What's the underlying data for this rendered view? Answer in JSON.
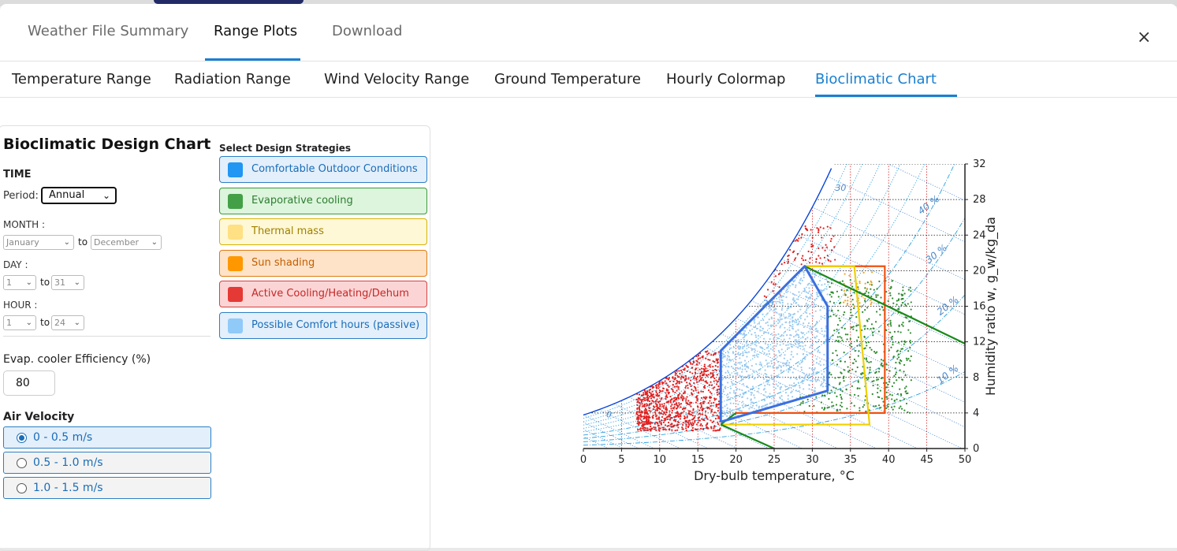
{
  "main_tabs": [
    "Weather File Summary",
    "Range Plots",
    "Download"
  ],
  "close_label": "×",
  "sub_tabs": [
    "Temperature Range",
    "Radiation Range",
    "Wind Velocity Range",
    "Ground Temperature",
    "Hourly Colormap",
    "Bioclimatic Chart"
  ],
  "panel": {
    "title": "Bioclimatic Design Chart",
    "time_label": "TIME",
    "period_label": "Period:",
    "period_value": "Annual",
    "month_label": "MONTH :",
    "month_from": "January",
    "month_to": "December",
    "day_label": "DAY :",
    "day_from": "1",
    "day_to": "31",
    "hour_label": "HOUR :",
    "hour_from": "1",
    "hour_to": "24",
    "to": "to",
    "evap_label": "Evap. cooler Efficiency (%)",
    "evap_value": "80",
    "air_velocity_label": "Air Velocity",
    "air_velocity_options": [
      "0 - 0.5 m/s",
      "0.5 - 1.0 m/s",
      "1.0 - 1.5 m/s"
    ],
    "strategies_label": "Select Design Strategies",
    "strategies": [
      {
        "label": "Comfortable Outdoor Conditions",
        "swatch": "#2196f3",
        "bg": "#e3effb",
        "border": "#2c7fc4",
        "text": "#1a6db8"
      },
      {
        "label": "Evaporative cooling",
        "swatch": "#43a047",
        "bg": "#dcf5dc",
        "border": "#3c9a3c",
        "text": "#2e7d32"
      },
      {
        "label": "Thermal mass",
        "swatch": "#ffe082",
        "bg": "#fff8d6",
        "border": "#d4b400",
        "text": "#a08000"
      },
      {
        "label": "Sun shading",
        "swatch": "#ff9800",
        "bg": "#ffe3c8",
        "border": "#e07a10",
        "text": "#c25e00"
      },
      {
        "label": "Active Cooling/Heating/Dehum",
        "swatch": "#e53935",
        "bg": "#fbd5d5",
        "border": "#d94040",
        "text": "#c62828"
      },
      {
        "label": "Possible Comfort hours (passive)",
        "swatch": "#90caf9",
        "bg": "#e3effb",
        "border": "#2c7fc4",
        "text": "#1a6db8"
      }
    ]
  },
  "chart_data": {
    "type": "scatter",
    "xlabel": "Dry-bulb temperature, °C",
    "ylabel": "Humidity ratio w, g_w/kg_da",
    "xlim": [
      0,
      50
    ],
    "ylim": [
      0,
      32
    ],
    "xticks": [
      0,
      5,
      10,
      15,
      20,
      25,
      30,
      35,
      40,
      45,
      50
    ],
    "yticks": [
      0,
      4,
      8,
      12,
      16,
      20,
      24,
      28,
      32
    ],
    "rh_labels": [
      "10 %",
      "20 %",
      "30 %",
      "40 %"
    ],
    "wb_labels": [
      "0",
      "10",
      "20",
      "30"
    ],
    "zones": {
      "comfort_polygon": [
        [
          18,
          3
        ],
        [
          18,
          11
        ],
        [
          29,
          20.5
        ],
        [
          32,
          16
        ],
        [
          32,
          6.5
        ],
        [
          18,
          3
        ]
      ],
      "thermal_mass": [
        [
          18,
          3
        ],
        [
          37.5,
          3
        ],
        [
          35,
          20.5
        ],
        [
          29,
          20.5
        ]
      ],
      "sun_shading": [
        [
          20,
          4
        ],
        [
          39.5,
          4
        ],
        [
          39.5,
          20.5
        ],
        [
          29,
          20.5
        ]
      ],
      "evaporative_line_upper": [
        [
          29,
          20.5
        ],
        [
          50,
          11.8
        ]
      ],
      "evaporative_line_lower": [
        [
          18,
          3
        ],
        [
          25,
          0
        ]
      ]
    },
    "series": [
      {
        "name": "Active Cooling/Heating/Dehum",
        "color": "#e02020"
      },
      {
        "name": "Possible Comfort hours (passive)",
        "color": "#9ccbf0"
      },
      {
        "name": "Evaporative cooling",
        "color": "#2e8b2e"
      },
      {
        "name": "Sun shading",
        "color": "#f0a020"
      }
    ],
    "grid": true
  }
}
